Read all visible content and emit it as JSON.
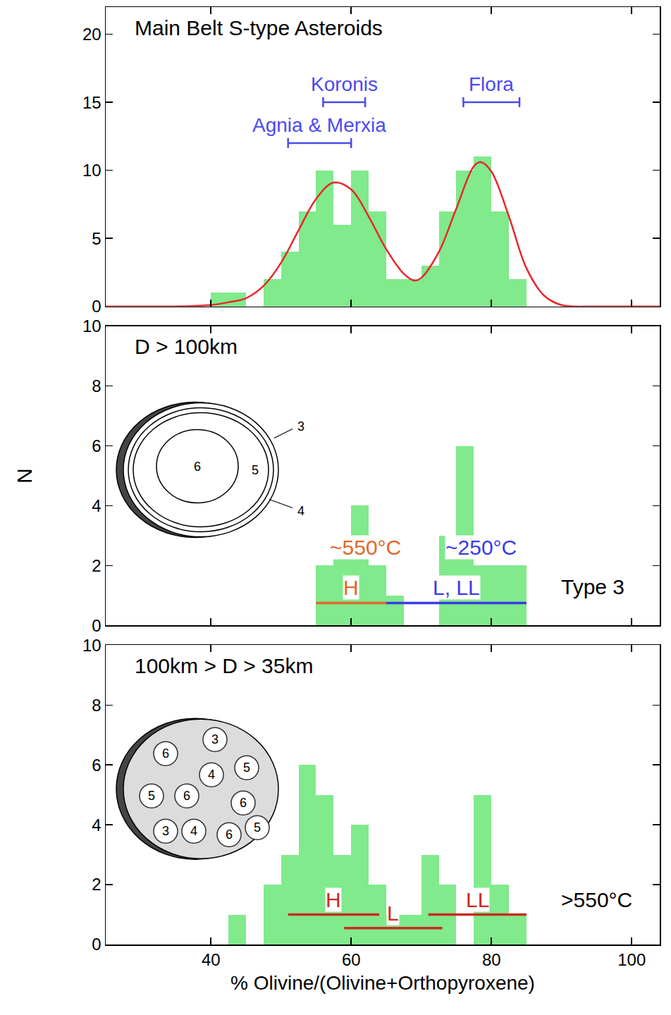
{
  "chart_data": [
    {
      "type": "histogram",
      "title": "Main Belt S-type Asteroids",
      "bins": [
        40,
        42.5,
        45,
        47.5,
        50,
        52.5,
        55,
        57.5,
        60,
        62.5,
        65,
        67.5,
        70,
        72.5,
        75,
        77.5,
        80,
        82.5,
        85
      ],
      "values": [
        1,
        1,
        0,
        2,
        4,
        7,
        10,
        6,
        10,
        7,
        2,
        2,
        3,
        7,
        10,
        11,
        7,
        2
      ],
      "color": "#80ea8c",
      "xlim": [
        25,
        104
      ],
      "xticks": [
        40,
        60,
        80,
        100
      ],
      "ylim": [
        0,
        22
      ],
      "yticks": [
        0,
        5,
        10,
        15,
        20
      ],
      "grid": false,
      "tick_labels": "y",
      "curve": {
        "type": "line",
        "color": "#e8262a",
        "x": [
          25,
          30,
          35,
          40,
          42.5,
          45,
          47.5,
          50,
          52.5,
          55,
          57.5,
          60,
          62.5,
          65,
          67.5,
          69,
          70,
          72.5,
          75,
          77.5,
          78.5,
          80,
          82.5,
          85,
          87.5,
          90,
          95,
          100,
          104
        ],
        "values": [
          0,
          0,
          0,
          0.1,
          0.3,
          0.6,
          1.5,
          3.2,
          5.6,
          7.9,
          9.1,
          8.6,
          6.6,
          4.2,
          2.4,
          1.9,
          2.1,
          4.0,
          7.2,
          10.3,
          10.6,
          9.9,
          6.6,
          2.8,
          0.8,
          0.1,
          0,
          0,
          0
        ]
      },
      "ranges": [
        {
          "label": "Koronis",
          "x0": 56,
          "x1": 62,
          "y": 15,
          "color": "#4a4af0",
          "line_style": "bracket"
        },
        {
          "label": "Flora",
          "x0": 76,
          "x1": 84,
          "y": 15,
          "color": "#4a4af0",
          "line_style": "bracket"
        },
        {
          "label": "Agnia & Merxia",
          "x0": 51,
          "x1": 60,
          "y": 12,
          "color": "#4a4af0",
          "line_style": "bracket"
        }
      ]
    },
    {
      "type": "histogram",
      "title": "D > 100km",
      "bins": [
        55,
        57.5,
        60,
        62.5,
        65,
        67.5,
        70,
        72.5,
        75,
        77.5,
        80,
        82.5,
        85
      ],
      "values": [
        2,
        3,
        4,
        2,
        1,
        0,
        0,
        3,
        6,
        2,
        2,
        2
      ],
      "color": "#80ea8c",
      "xlim": [
        25,
        104
      ],
      "xticks": [
        40,
        60,
        80,
        100
      ],
      "ylim": [
        0,
        10
      ],
      "yticks": [
        0,
        2,
        4,
        6,
        8,
        10
      ],
      "grid": false,
      "tick_labels": "y",
      "ylabel": "N",
      "ranges": [
        {
          "label": "H",
          "x0": 55,
          "x1": 65,
          "y": 0.75,
          "color": "#e0682a",
          "line_style": "solid"
        },
        {
          "label": "L, LL",
          "x0": 65,
          "x1": 85,
          "y": 0.75,
          "color": "#3a3ae8",
          "line_style": "solid"
        }
      ],
      "annotations": [
        {
          "text": "~550°C",
          "x": 62,
          "y": 2.6,
          "color": "#e0682a"
        },
        {
          "text": "~250°C",
          "x": 78.5,
          "y": 2.6,
          "color": "#3a3ae8"
        },
        {
          "text": "Type 3",
          "x": 94.5,
          "y": 1.3,
          "color": "#000000"
        }
      ],
      "diagram": {
        "type": "layered",
        "labels": [
          "6",
          "5",
          "4",
          "3"
        ]
      }
    },
    {
      "type": "histogram",
      "title": "100km > D > 35km",
      "bins": [
        42.5,
        45,
        47.5,
        50,
        52.5,
        55,
        57.5,
        60,
        62.5,
        65,
        67.5,
        70,
        72.5,
        75,
        77.5,
        80,
        82.5,
        85
      ],
      "values": [
        1,
        0,
        2,
        3,
        6,
        5,
        3,
        4,
        2,
        1,
        1,
        3,
        2,
        0,
        5,
        2,
        1
      ],
      "color": "#80ea8c",
      "xlim": [
        25,
        104
      ],
      "xticks": [
        40,
        60,
        80,
        100
      ],
      "ylim": [
        0,
        10
      ],
      "yticks": [
        0,
        2,
        4,
        6,
        8,
        10
      ],
      "grid": false,
      "xlabel": "% Olivine/(Olivine+Orthopyroxene)",
      "ranges": [
        {
          "label": "H",
          "x0": 51,
          "x1": 64,
          "y": 1,
          "color": "#cc2a20",
          "line_style": "solid"
        },
        {
          "label": "L",
          "x0": 59,
          "x1": 73,
          "y": 0.55,
          "color": "#cc2a20",
          "line_style": "solid"
        },
        {
          "label": "LL",
          "x0": 71,
          "x1": 85,
          "y": 1,
          "color": "#cc2a20",
          "line_style": "solid"
        }
      ],
      "annotations": [
        {
          "text": ">550°C",
          "x": 95,
          "y": 1.5,
          "color": "#000000"
        }
      ],
      "diagram": {
        "type": "rubble",
        "labels": [
          "3",
          "6",
          "5",
          "4",
          "5",
          "6",
          "6",
          "3",
          "4",
          "6",
          "5"
        ]
      }
    }
  ]
}
